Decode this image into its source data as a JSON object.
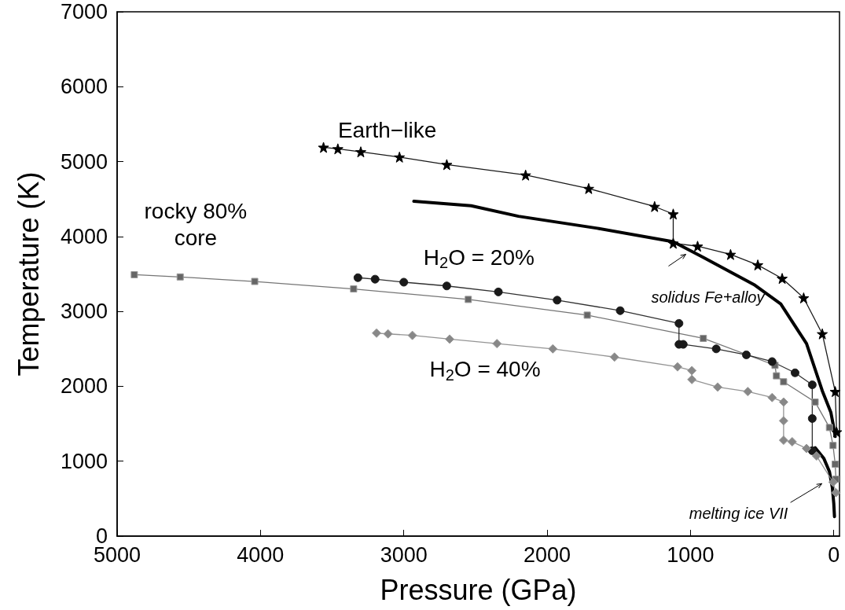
{
  "chart_data": {
    "type": "line",
    "xlabel": "Pressure (GPa)",
    "ylabel": "Temperature (K)",
    "xlim": [
      5000,
      -40
    ],
    "xticks": [
      5000,
      4000,
      3000,
      2000,
      1000,
      0
    ],
    "ylim": [
      0,
      7000
    ],
    "yticks": [
      0,
      1000,
      2000,
      3000,
      4000,
      5000,
      6000,
      7000
    ],
    "grid": false,
    "legend": false,
    "series": [
      {
        "name": "Earth−like",
        "color": "#000000",
        "marker": "star",
        "x": [
          3560,
          3460,
          3300,
          3030,
          2700,
          2150,
          1710,
          1250,
          1120,
          1120,
          950,
          720,
          530,
          360,
          210,
          80,
          -10,
          -20
        ],
        "values": [
          5190,
          5170,
          5130,
          5060,
          4960,
          4820,
          4640,
          4400,
          4300,
          3910,
          3870,
          3760,
          3620,
          3440,
          3180,
          2700,
          1930,
          1390
        ]
      },
      {
        "name": "rocky 80% core",
        "color": "#666666",
        "marker": "square",
        "x": [
          4880,
          4560,
          4040,
          3350,
          2550,
          1720,
          910,
          410,
          400,
          350,
          130,
          30,
          5,
          -10,
          -15
        ],
        "values": [
          3490,
          3460,
          3400,
          3300,
          3160,
          2950,
          2640,
          2280,
          2140,
          2060,
          1790,
          1450,
          1210,
          960,
          760
        ]
      },
      {
        "name": "H$_{2}$O = 20%",
        "color": "#1a1a1a",
        "marker": "circle",
        "x": [
          3320,
          3200,
          3000,
          2700,
          2340,
          1930,
          1490,
          1080,
          1080,
          1050,
          820,
          610,
          430,
          270,
          150,
          150,
          150
        ],
        "values": [
          3450,
          3430,
          3390,
          3340,
          3260,
          3150,
          3010,
          2840,
          2560,
          2560,
          2500,
          2420,
          2330,
          2180,
          2020,
          1570,
          1140
        ]
      },
      {
        "name": "H$_{2}$O = 40%",
        "color": "#888888",
        "marker": "diamond",
        "x": [
          3190,
          3110,
          2940,
          2680,
          2350,
          1960,
          1530,
          1090,
          990,
          990,
          810,
          600,
          430,
          350,
          350,
          350,
          290,
          190,
          120,
          5,
          -15
        ],
        "values": [
          2710,
          2700,
          2680,
          2630,
          2570,
          2500,
          2390,
          2260,
          2210,
          2090,
          1990,
          1930,
          1850,
          1790,
          1540,
          1280,
          1260,
          1170,
          1070,
          720,
          580
        ]
      },
      {
        "name": "solidus Fe+alloy",
        "color": "#000000",
        "marker": "none",
        "x": [
          2930,
          2530,
          2200,
          1650,
          1120,
          920,
          550,
          370,
          190,
          80,
          20,
          5,
          -10
        ],
        "values": [
          4470,
          4410,
          4270,
          4110,
          3930,
          3730,
          3350,
          3100,
          2570,
          1940,
          1650,
          1500,
          1330
        ]
      },
      {
        "name": "melting ice VII",
        "color": "#000000",
        "marker": "none",
        "x": [
          130,
          70,
          30,
          10,
          0,
          -5
        ],
        "values": [
          1180,
          1040,
          860,
          650,
          440,
          260
        ]
      }
    ]
  }
}
